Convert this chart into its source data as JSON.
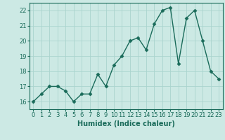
{
  "x": [
    0,
    1,
    2,
    3,
    4,
    5,
    6,
    7,
    8,
    9,
    10,
    11,
    12,
    13,
    14,
    15,
    16,
    17,
    18,
    19,
    20,
    21,
    22,
    23
  ],
  "y": [
    16.0,
    16.5,
    17.0,
    17.0,
    16.7,
    16.0,
    16.5,
    16.5,
    17.8,
    17.0,
    18.4,
    19.0,
    20.0,
    20.2,
    19.4,
    21.1,
    22.0,
    22.2,
    18.5,
    21.5,
    22.0,
    20.0,
    18.0,
    17.5
  ],
  "line_color": "#1a6b5a",
  "marker": "D",
  "markersize": 2.5,
  "linewidth": 1.0,
  "bg_color": "#cce9e4",
  "grid_color": "#aad4ce",
  "xlabel": "Humidex (Indice chaleur)",
  "ylim": [
    15.5,
    22.5
  ],
  "xlim": [
    -0.5,
    23.5
  ],
  "yticks": [
    16,
    17,
    18,
    19,
    20,
    21,
    22
  ],
  "xticks": [
    0,
    1,
    2,
    3,
    4,
    5,
    6,
    7,
    8,
    9,
    10,
    11,
    12,
    13,
    14,
    15,
    16,
    17,
    18,
    19,
    20,
    21,
    22,
    23
  ],
  "tick_fontsize": 6,
  "xlabel_fontsize": 7
}
